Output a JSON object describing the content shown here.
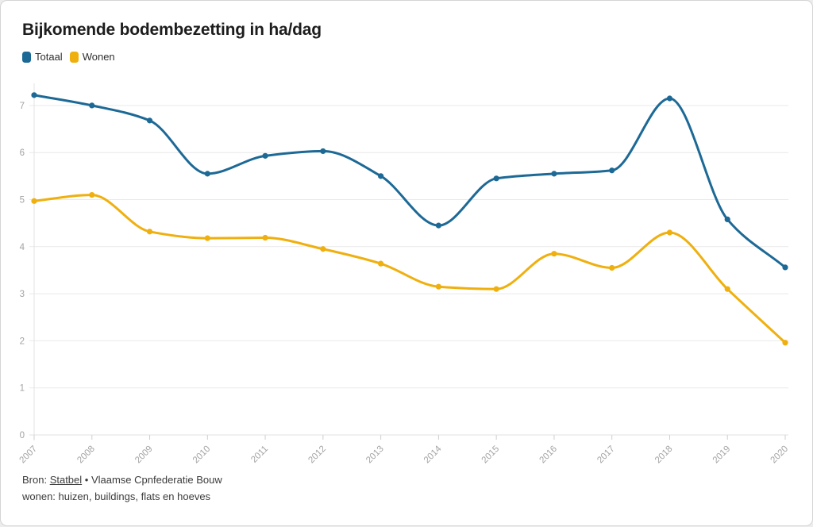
{
  "title": "Bijkomende bodembezetting in ha/dag",
  "legend": [
    {
      "label": "Totaal",
      "color": "#1d6996"
    },
    {
      "label": "Wonen",
      "color": "#efb00f"
    }
  ],
  "source": {
    "prefix": "Bron: ",
    "link": "Statbel",
    "separator": " • ",
    "publisher": "Vlaamse Cpnfederatie Bouw",
    "note": "wonen: huizen, buildings, flats en hoeves"
  },
  "chart_data": {
    "type": "line",
    "title": "Bijkomende bodembezetting in ha/dag",
    "x": [
      2007,
      2008,
      2009,
      2010,
      2011,
      2012,
      2013,
      2014,
      2015,
      2016,
      2017,
      2018,
      2019,
      2020
    ],
    "series": [
      {
        "name": "Totaal",
        "color": "#1d6996",
        "values": [
          7.22,
          7.0,
          6.68,
          5.55,
          5.93,
          6.03,
          5.5,
          4.45,
          5.45,
          5.55,
          5.62,
          7.15,
          4.58,
          3.56
        ]
      },
      {
        "name": "Wonen",
        "color": "#efb00f",
        "values": [
          4.97,
          5.1,
          4.32,
          4.18,
          4.19,
          3.95,
          3.64,
          3.15,
          3.1,
          3.85,
          3.55,
          4.3,
          3.1,
          1.96
        ]
      }
    ],
    "xlabel": "",
    "ylabel": "",
    "ylim": [
      0,
      7.5
    ],
    "yticks": [
      0,
      1,
      2,
      3,
      4,
      5,
      6,
      7
    ],
    "grid": true,
    "legend_position": "top-left",
    "interpolation": "monotone",
    "markers": true
  },
  "colors": {
    "gridline": "#e9e9e9",
    "baseline": "#e0e0e0",
    "axis_line": "#e3e3e3",
    "tick": "#cfcfcf",
    "tick_label": "#a3a3a3"
  }
}
